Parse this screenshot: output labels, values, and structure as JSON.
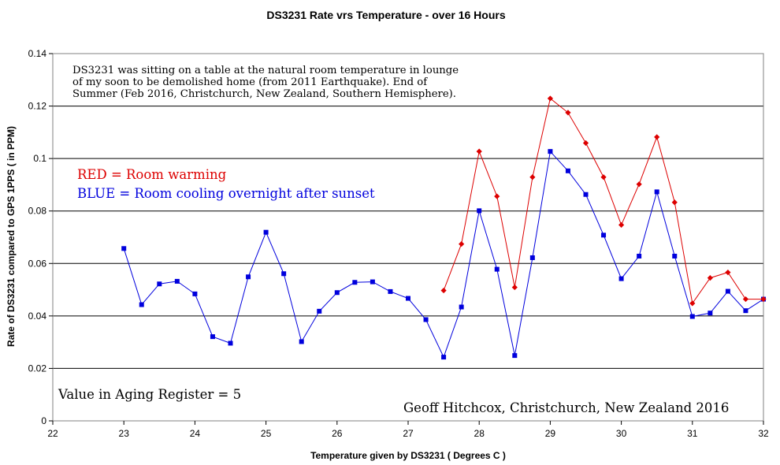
{
  "chart_data": {
    "type": "line",
    "title": "DS3231 Rate vrs Temperature - over 16 Hours",
    "xlabel": "Temperature given by DS3231 ( Degrees C )",
    "ylabel": "Rate of DS3231 compared to GPS 1PPS ( in PPM)",
    "xlim": [
      22,
      32
    ],
    "ylim": [
      0,
      0.14
    ],
    "x_ticks": [
      "22",
      "23",
      "24",
      "25",
      "26",
      "27",
      "28",
      "29",
      "30",
      "31",
      "32"
    ],
    "y_ticks": [
      "0",
      "0.02",
      "0.04",
      "0.06",
      "0.08",
      "0.1",
      "0.12",
      "0.14"
    ],
    "grid": "horizontal",
    "series": [
      {
        "color": "#0000dd",
        "marker": "square",
        "points": [
          [
            23.0,
            0.0657
          ],
          [
            23.25,
            0.0443
          ],
          [
            23.5,
            0.0522
          ],
          [
            23.75,
            0.0532
          ],
          [
            24.0,
            0.0484
          ],
          [
            24.25,
            0.0321
          ],
          [
            24.5,
            0.0296
          ],
          [
            24.75,
            0.0549
          ],
          [
            25.0,
            0.0719
          ],
          [
            25.25,
            0.0561
          ],
          [
            25.5,
            0.0302
          ],
          [
            25.75,
            0.0418
          ],
          [
            26.0,
            0.0489
          ],
          [
            26.25,
            0.0528
          ],
          [
            26.5,
            0.053
          ],
          [
            26.75,
            0.0493
          ],
          [
            27.0,
            0.0467
          ],
          [
            27.25,
            0.0386
          ],
          [
            27.5,
            0.0243
          ],
          [
            27.75,
            0.0434
          ],
          [
            28.0,
            0.0801
          ],
          [
            28.25,
            0.0578
          ],
          [
            28.5,
            0.0249
          ],
          [
            28.75,
            0.0622
          ],
          [
            29.0,
            0.1027
          ],
          [
            29.25,
            0.0953
          ],
          [
            29.5,
            0.0863
          ],
          [
            29.75,
            0.0708
          ],
          [
            30.0,
            0.0542
          ],
          [
            30.25,
            0.0628
          ],
          [
            30.5,
            0.0873
          ],
          [
            30.75,
            0.0628
          ],
          [
            31.0,
            0.0398
          ],
          [
            31.25,
            0.0411
          ],
          [
            31.5,
            0.0494
          ],
          [
            31.75,
            0.042
          ],
          [
            32.0,
            0.0464
          ]
        ]
      },
      {
        "color": "#dd0000",
        "marker": "diamond",
        "points": [
          [
            27.5,
            0.0497
          ],
          [
            27.75,
            0.0674
          ],
          [
            28.0,
            0.1027
          ],
          [
            28.25,
            0.0856
          ],
          [
            28.5,
            0.0509
          ],
          [
            28.75,
            0.0929
          ],
          [
            29.0,
            0.1229
          ],
          [
            29.25,
            0.1175
          ],
          [
            29.5,
            0.1059
          ],
          [
            29.75,
            0.0929
          ],
          [
            30.0,
            0.0747
          ],
          [
            30.25,
            0.0902
          ],
          [
            30.5,
            0.1082
          ],
          [
            30.75,
            0.0833
          ],
          [
            31.0,
            0.0448
          ],
          [
            31.25,
            0.0545
          ],
          [
            31.5,
            0.0566
          ],
          [
            31.75,
            0.0464
          ],
          [
            32.0,
            0.0464
          ]
        ]
      }
    ],
    "annotations": {
      "note_lines": [
        "DS3231 was sitting on a table at the natural room temperature in lounge",
        "of my soon to be demolished home (from 2011 Earthquake). End of",
        "Summer (Feb 2016, Christchurch, New Zealand, Southern Hemisphere)."
      ],
      "red_label": "RED = Room warming",
      "blue_label": "BLUE = Room cooling overnight after sunset",
      "aging": "Value in Aging Register = 5",
      "author": "Geoff Hitchcox, Christchurch, New Zealand 2016",
      "red_color": "#dd0000",
      "blue_color": "#0000dd"
    }
  }
}
